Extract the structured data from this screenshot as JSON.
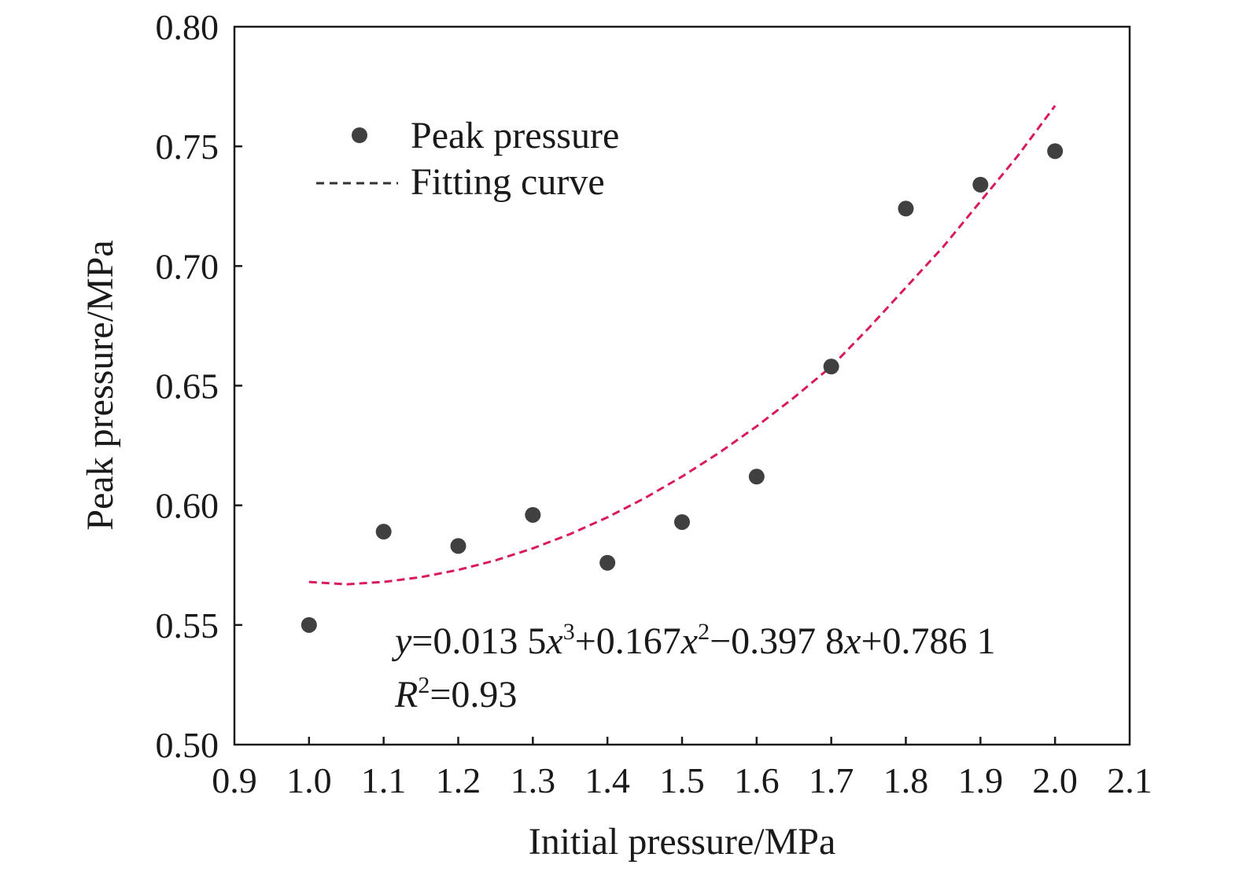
{
  "chart_data": {
    "type": "scatter",
    "xlabel": "Initial pressure/MPa",
    "ylabel": "Peak pressure/MPa",
    "xlim": [
      0.9,
      2.1
    ],
    "ylim": [
      0.5,
      0.8
    ],
    "x_ticks": [
      0.9,
      1.0,
      1.1,
      1.2,
      1.3,
      1.4,
      1.5,
      1.6,
      1.7,
      1.8,
      1.9,
      2.0,
      2.1
    ],
    "x_tick_labels": [
      "0.9",
      "1.0",
      "1.1",
      "1.2",
      "1.3",
      "1.4",
      "1.5",
      "1.6",
      "1.7",
      "1.8",
      "1.9",
      "2.0",
      "2.1"
    ],
    "y_ticks": [
      0.5,
      0.55,
      0.6,
      0.65,
      0.7,
      0.75,
      0.8
    ],
    "y_tick_labels": [
      "0.50",
      "0.55",
      "0.60",
      "0.65",
      "0.70",
      "0.75",
      "0.80"
    ],
    "grid": false,
    "legend_position": "top-left",
    "series": [
      {
        "name": "Peak pressure",
        "kind": "scatter",
        "color": "#404040",
        "x": [
          1.0,
          1.1,
          1.2,
          1.3,
          1.4,
          1.5,
          1.6,
          1.7,
          1.8,
          1.9,
          2.0
        ],
        "y": [
          0.55,
          0.589,
          0.583,
          0.596,
          0.576,
          0.593,
          0.612,
          0.658,
          0.724,
          0.734,
          0.748
        ]
      },
      {
        "name": "Fitting curve",
        "kind": "line",
        "style": "dashed",
        "color": "#d81b60",
        "x": [
          1.0,
          1.05,
          1.1,
          1.15,
          1.2,
          1.25,
          1.3,
          1.35,
          1.4,
          1.45,
          1.5,
          1.55,
          1.6,
          1.65,
          1.7,
          1.75,
          1.8,
          1.85,
          1.9,
          1.95,
          2.0
        ],
        "y": [
          0.568,
          0.567,
          0.568,
          0.57,
          0.573,
          0.577,
          0.582,
          0.588,
          0.595,
          0.603,
          0.612,
          0.622,
          0.633,
          0.645,
          0.658,
          0.674,
          0.691,
          0.708,
          0.727,
          0.746,
          0.767
        ]
      }
    ],
    "annotations": {
      "equation": {
        "y_var": "y",
        "eq1": "=0.013 5",
        "x_var1": "x",
        "sup1": "3",
        "eq2": "+0.167",
        "x_var2": "x",
        "sup2": "2",
        "eq3": "−0.397 8",
        "x_var3": "x",
        "eq4": "+0.786 1"
      },
      "r_squared": {
        "var": "R",
        "sup": "2",
        "value": "=0.93"
      }
    }
  }
}
